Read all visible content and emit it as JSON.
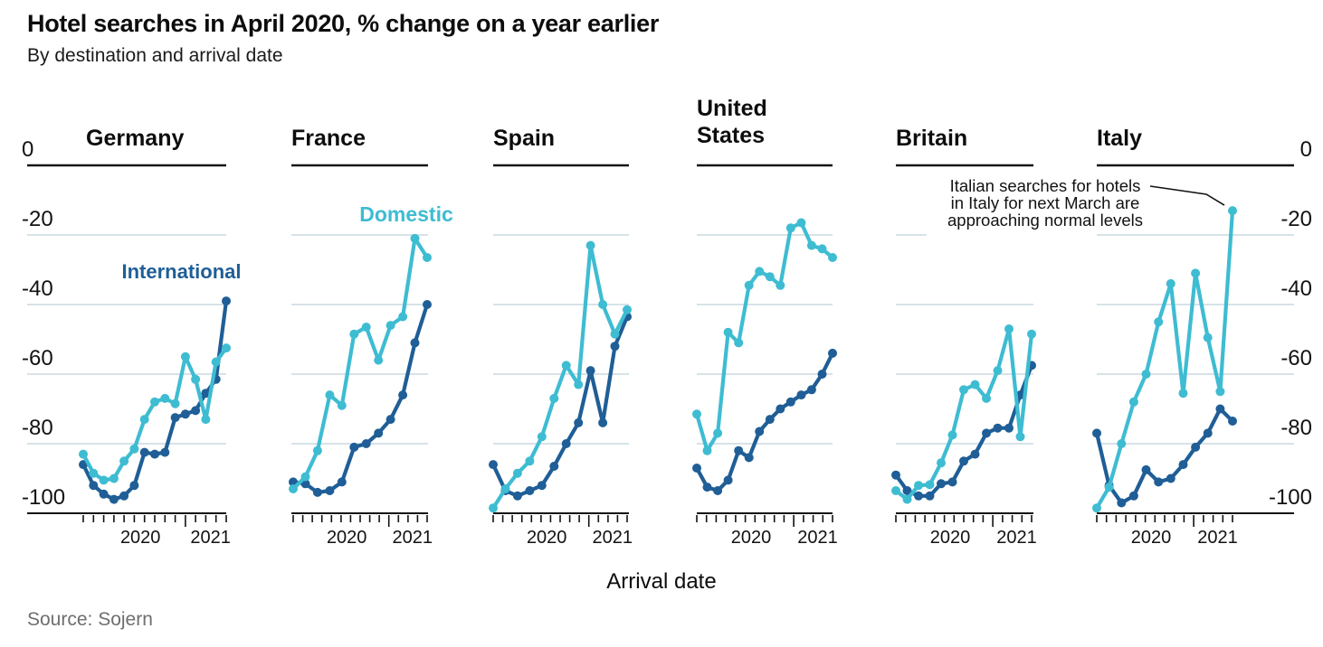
{
  "header": {
    "title": "Hotel searches in April 2020, % change on a year earlier",
    "subtitle": "By destination and arrival date"
  },
  "labels": {
    "domestic": "Domestic",
    "international": "International",
    "arrival_date": "Arrival date"
  },
  "source": "Source: Sojern",
  "chart_data": {
    "type": "line",
    "title": "Hotel searches in April 2020, % change on a year earlier",
    "subtitle": "By destination and arrival date",
    "xlabel": "Arrival date",
    "x_tick_labels": [
      "2020",
      "2021"
    ],
    "ylim": [
      -100,
      0
    ],
    "y_ticks": [
      0,
      -20,
      -40,
      -60,
      -80,
      -100
    ],
    "y_tick_labels": [
      "0",
      "-20",
      "-40",
      "-60",
      "-80",
      "-100"
    ],
    "y_axis_sides": [
      "left",
      "right"
    ],
    "grid": "horizontal",
    "series_names": [
      "Domestic",
      "International"
    ],
    "colors": {
      "domestic": "#3ebcd2",
      "international": "#1f5e96",
      "gridline": "#c9d8e0",
      "axis": "#121212",
      "source_text": "#6e6e6e"
    },
    "panels": [
      {
        "country": "Germany",
        "domestic": [
          -83,
          -88.5,
          -90.5,
          -90,
          -85,
          -81.5,
          -73,
          -68,
          -67,
          -68.5,
          -55,
          -61.5,
          -73,
          -56.5,
          -52.5
        ],
        "international": [
          -86,
          -92,
          -94.5,
          -96,
          -95,
          -92,
          -82.5,
          -83,
          -82.5,
          -72.5,
          -71.5,
          -70.5,
          -65.5,
          -61.5,
          -39
        ]
      },
      {
        "country": "France",
        "domestic": [
          -93,
          -89.5,
          -82,
          -66,
          -69,
          -48.5,
          -46.5,
          -56,
          -46,
          -43.5,
          -21,
          -26.5
        ],
        "international": [
          -91,
          -91.5,
          -94,
          -93.5,
          -91,
          -81,
          -80,
          -77,
          -73,
          -66,
          -51,
          -40
        ]
      },
      {
        "country": "Spain",
        "domestic": [
          -98.5,
          -93,
          -88.5,
          -85,
          -78,
          -67,
          -57.5,
          -63,
          -23,
          -40,
          -48.5,
          -41.5
        ],
        "international": [
          -86,
          -93.5,
          -95,
          -93.5,
          -92,
          -86.5,
          -80,
          -74,
          -59,
          -74,
          -52,
          -43.5
        ]
      },
      {
        "country": "United States",
        "domestic": [
          -71.5,
          -82,
          -77,
          -48,
          -51,
          -34.5,
          -30.5,
          -32,
          -34.5,
          -18,
          -16.5,
          -23,
          -24,
          -26.5
        ],
        "international": [
          -87,
          -92.5,
          -93.5,
          -90.5,
          -82,
          -84,
          -76.5,
          -73,
          -70,
          -68,
          -66,
          -64.5,
          -60,
          -54
        ]
      },
      {
        "country": "Britain",
        "domestic": [
          -93.5,
          -96,
          -92,
          -91.8,
          -85.5,
          -77.5,
          -64.5,
          -63,
          -67,
          -59,
          -47,
          -78,
          -48.5
        ],
        "international": [
          -89,
          -93.5,
          -95,
          -95,
          -91.5,
          -91,
          -85,
          -83,
          -77,
          -75.5,
          -75.5,
          -66,
          -57.5
        ]
      },
      {
        "country": "Italy",
        "domestic": [
          -98.5,
          -92.5,
          -80,
          -68,
          -60,
          -45,
          -34,
          -65.5,
          -31,
          -49.5,
          -65,
          -13
        ],
        "international": [
          -77,
          -92,
          -97,
          -95,
          -87.5,
          -91,
          -90,
          -86,
          -81,
          -77,
          -70,
          -73.5
        ]
      }
    ],
    "annotation": {
      "lines": [
        "Italian searches for hotels",
        "in Italy for next March are",
        "approaching normal levels"
      ],
      "points_to": {
        "panel": "Italy",
        "series": "Domestic",
        "point": "last"
      }
    }
  }
}
